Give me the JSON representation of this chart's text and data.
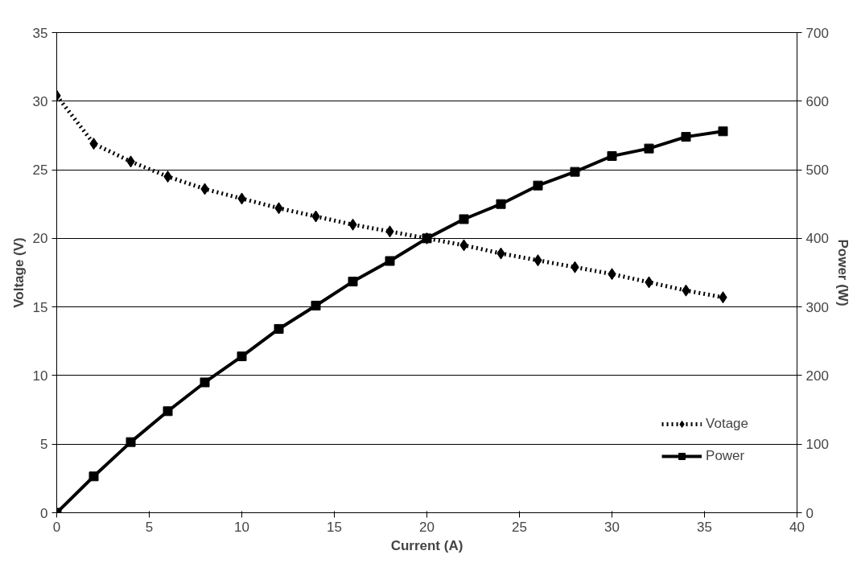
{
  "chart_data": {
    "type": "line",
    "xlabel": "Current (A)",
    "ylabel": "Voltage (V)",
    "y2label": "Power (W)",
    "x": [
      0,
      2,
      4,
      6,
      8,
      10,
      12,
      14,
      16,
      18,
      20,
      22,
      24,
      26,
      28,
      30,
      32,
      34,
      36
    ],
    "series": [
      {
        "name": "Votage",
        "color": "#000000",
        "marker": "diamond",
        "line_style": "dotted",
        "values": [
          30.4,
          26.9,
          25.6,
          24.5,
          23.6,
          22.9,
          22.2,
          21.6,
          21.0,
          20.5,
          20.0,
          19.5,
          18.9,
          18.4,
          17.9,
          17.4,
          16.8,
          16.2,
          15.7
        ]
      },
      {
        "name": "Power",
        "color": "#000000",
        "marker": "square",
        "line_style": "solid",
        "axis": "y2",
        "values": [
          0,
          53,
          103,
          148,
          190,
          228,
          268,
          302,
          337,
          367,
          400,
          428,
          450,
          477,
          497,
          520,
          531,
          548,
          556
        ]
      }
    ],
    "xlim": [
      0,
      40
    ],
    "xticks": [
      0,
      5,
      10,
      15,
      20,
      25,
      30,
      35,
      40
    ],
    "ylim": [
      0,
      35
    ],
    "yticks": [
      0,
      5,
      10,
      15,
      20,
      25,
      30,
      35
    ],
    "y2lim": [
      0,
      700
    ],
    "y2ticks": [
      0,
      100,
      200,
      300,
      400,
      500,
      600,
      700
    ],
    "grid": "y",
    "legend": "bottom right"
  }
}
